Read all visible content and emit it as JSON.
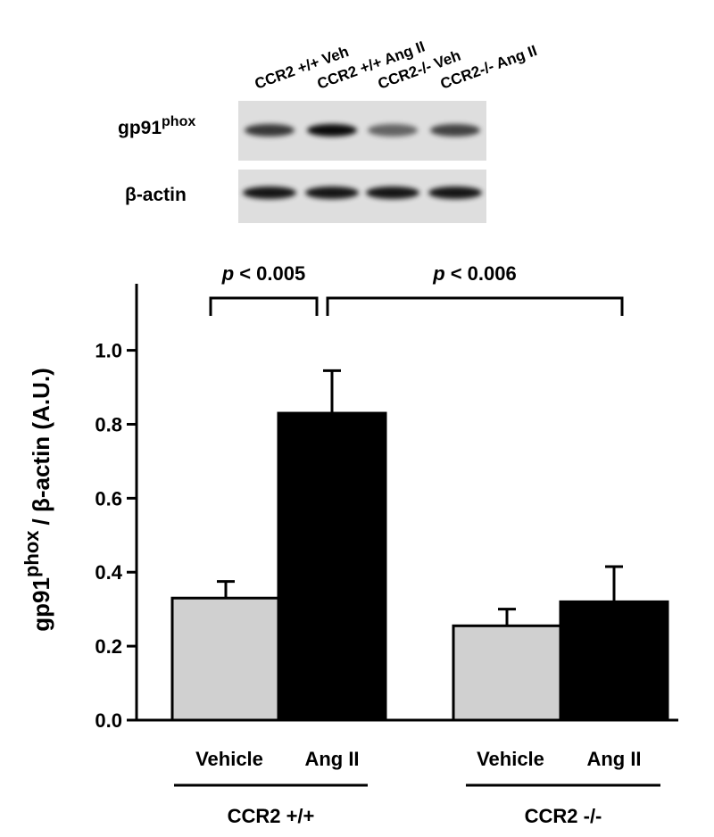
{
  "blot": {
    "lanes": [
      "CCR2 +/+ Veh",
      "CCR2 +/+ Ang II",
      "CCR2-/- Veh",
      "CCR2-/- Ang II"
    ],
    "rows": [
      {
        "main": "gp91",
        "sup": "phox"
      },
      {
        "main": "β-actin"
      }
    ]
  },
  "chart_data": {
    "type": "bar",
    "ylabel": {
      "main": "gp91",
      "sup": "phox",
      "rest": "/ β-actin (A.U.)"
    },
    "categories": [
      "Vehicle",
      "Ang II",
      "Vehicle",
      "Ang II"
    ],
    "groups": [
      "CCR2 +/+",
      "CCR2 -/-"
    ],
    "values": [
      0.33,
      0.83,
      0.255,
      0.32
    ],
    "errors": [
      0.045,
      0.115,
      0.045,
      0.095
    ],
    "colors": [
      "#d0d0d0",
      "#000000",
      "#d0d0d0",
      "#000000"
    ],
    "ylim": [
      0,
      1.18
    ],
    "yticks": [
      {
        "value": 0,
        "label": "0.0"
      },
      0.2,
      0.4,
      0.6,
      0.8,
      {
        "value": 1,
        "label": "1.0"
      }
    ],
    "annotations": [
      {
        "italic": "p",
        "text": "< 0.005"
      },
      {
        "italic": "p",
        "text": "< 0.006"
      }
    ]
  }
}
